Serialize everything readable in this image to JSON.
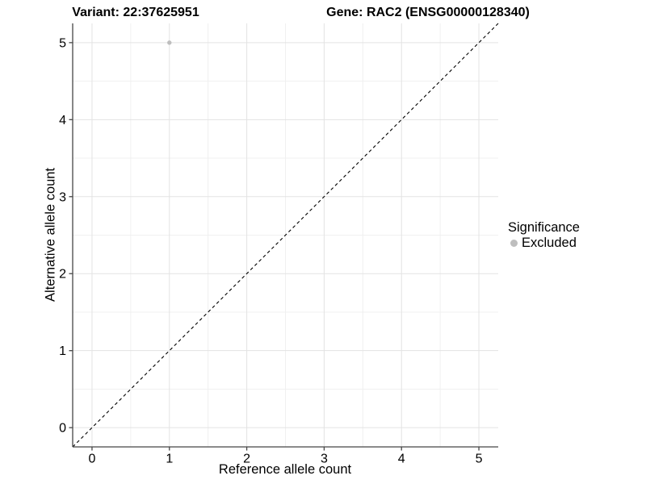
{
  "chart_data": {
    "type": "scatter",
    "title_left": "Variant: 22:37625951",
    "title_right": "Gene: RAC2 (ENSG00000128340)",
    "xlabel": "Reference allele count",
    "ylabel": "Alternative allele count",
    "xlim": [
      -0.25,
      5.25
    ],
    "ylim": [
      -0.25,
      5.25
    ],
    "xticks": [
      0,
      1,
      2,
      3,
      4,
      5
    ],
    "yticks": [
      0,
      1,
      2,
      3,
      4,
      5
    ],
    "grid": "major and minor (0.5 steps), no top/right border, axis lines on left and bottom",
    "series": [
      {
        "name": "Excluded",
        "color": "#bebebe",
        "points": [
          {
            "x": 1,
            "y": 5
          }
        ]
      }
    ],
    "abline": {
      "slope": 1,
      "intercept": 0,
      "style": "dashed",
      "color": "#000000"
    },
    "legend": {
      "title": "Significance",
      "position": "right",
      "items": [
        {
          "label": "Excluded",
          "color": "#bebebe",
          "marker": "circle"
        }
      ]
    },
    "colors": {
      "background": "#ffffff",
      "grid_major": "#e3e3e3",
      "grid_minor": "#f0f0f0",
      "axis": "#464646",
      "text": "#000000",
      "point": "#bebebe"
    }
  }
}
